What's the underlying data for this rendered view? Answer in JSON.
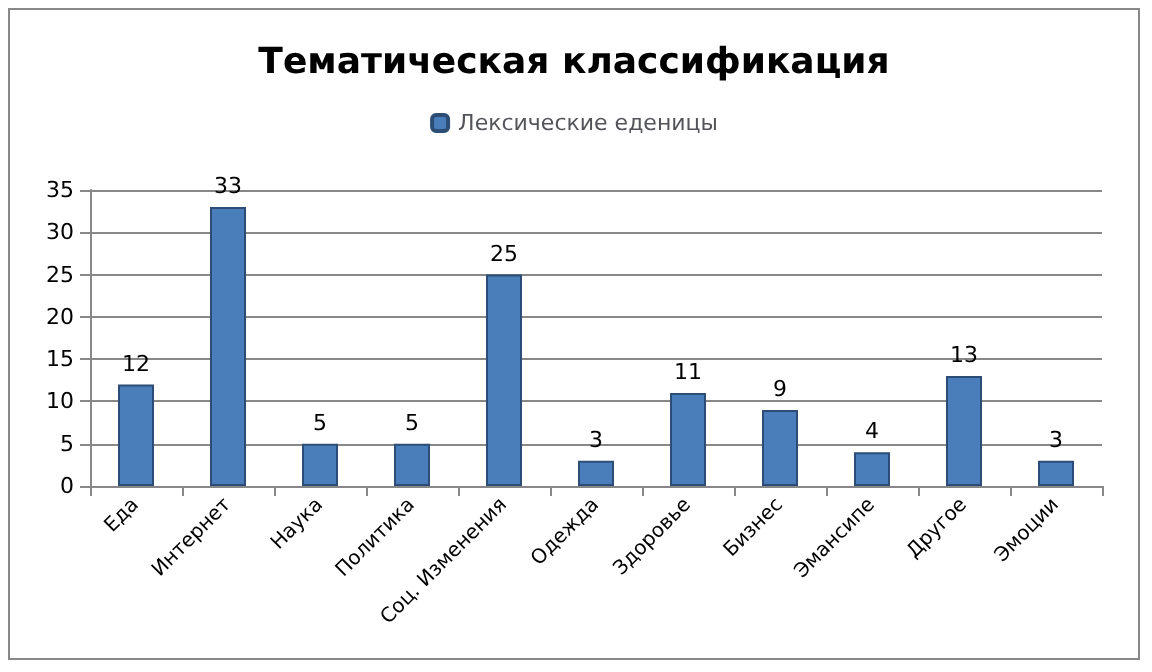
{
  "chart_data": {
    "type": "bar",
    "title": "Тематическая классификация",
    "categories": [
      "Еда",
      "Интернет",
      "Наука",
      "Политика",
      "Соц. Изменения",
      "Одежда",
      "Здоровье",
      "Бизнес",
      "Эмансипе",
      "Другое",
      "Эмоции"
    ],
    "series": [
      {
        "name": "Лексические еденицы",
        "color": "#4a7ebb",
        "values": [
          12,
          33,
          5,
          5,
          25,
          3,
          11,
          9,
          4,
          13,
          3
        ]
      }
    ],
    "ylim": [
      0,
      35
    ],
    "yticks": [
      0,
      5,
      10,
      15,
      20,
      25,
      30,
      35
    ],
    "grid": "y",
    "legend": "top",
    "data_labels": true
  }
}
